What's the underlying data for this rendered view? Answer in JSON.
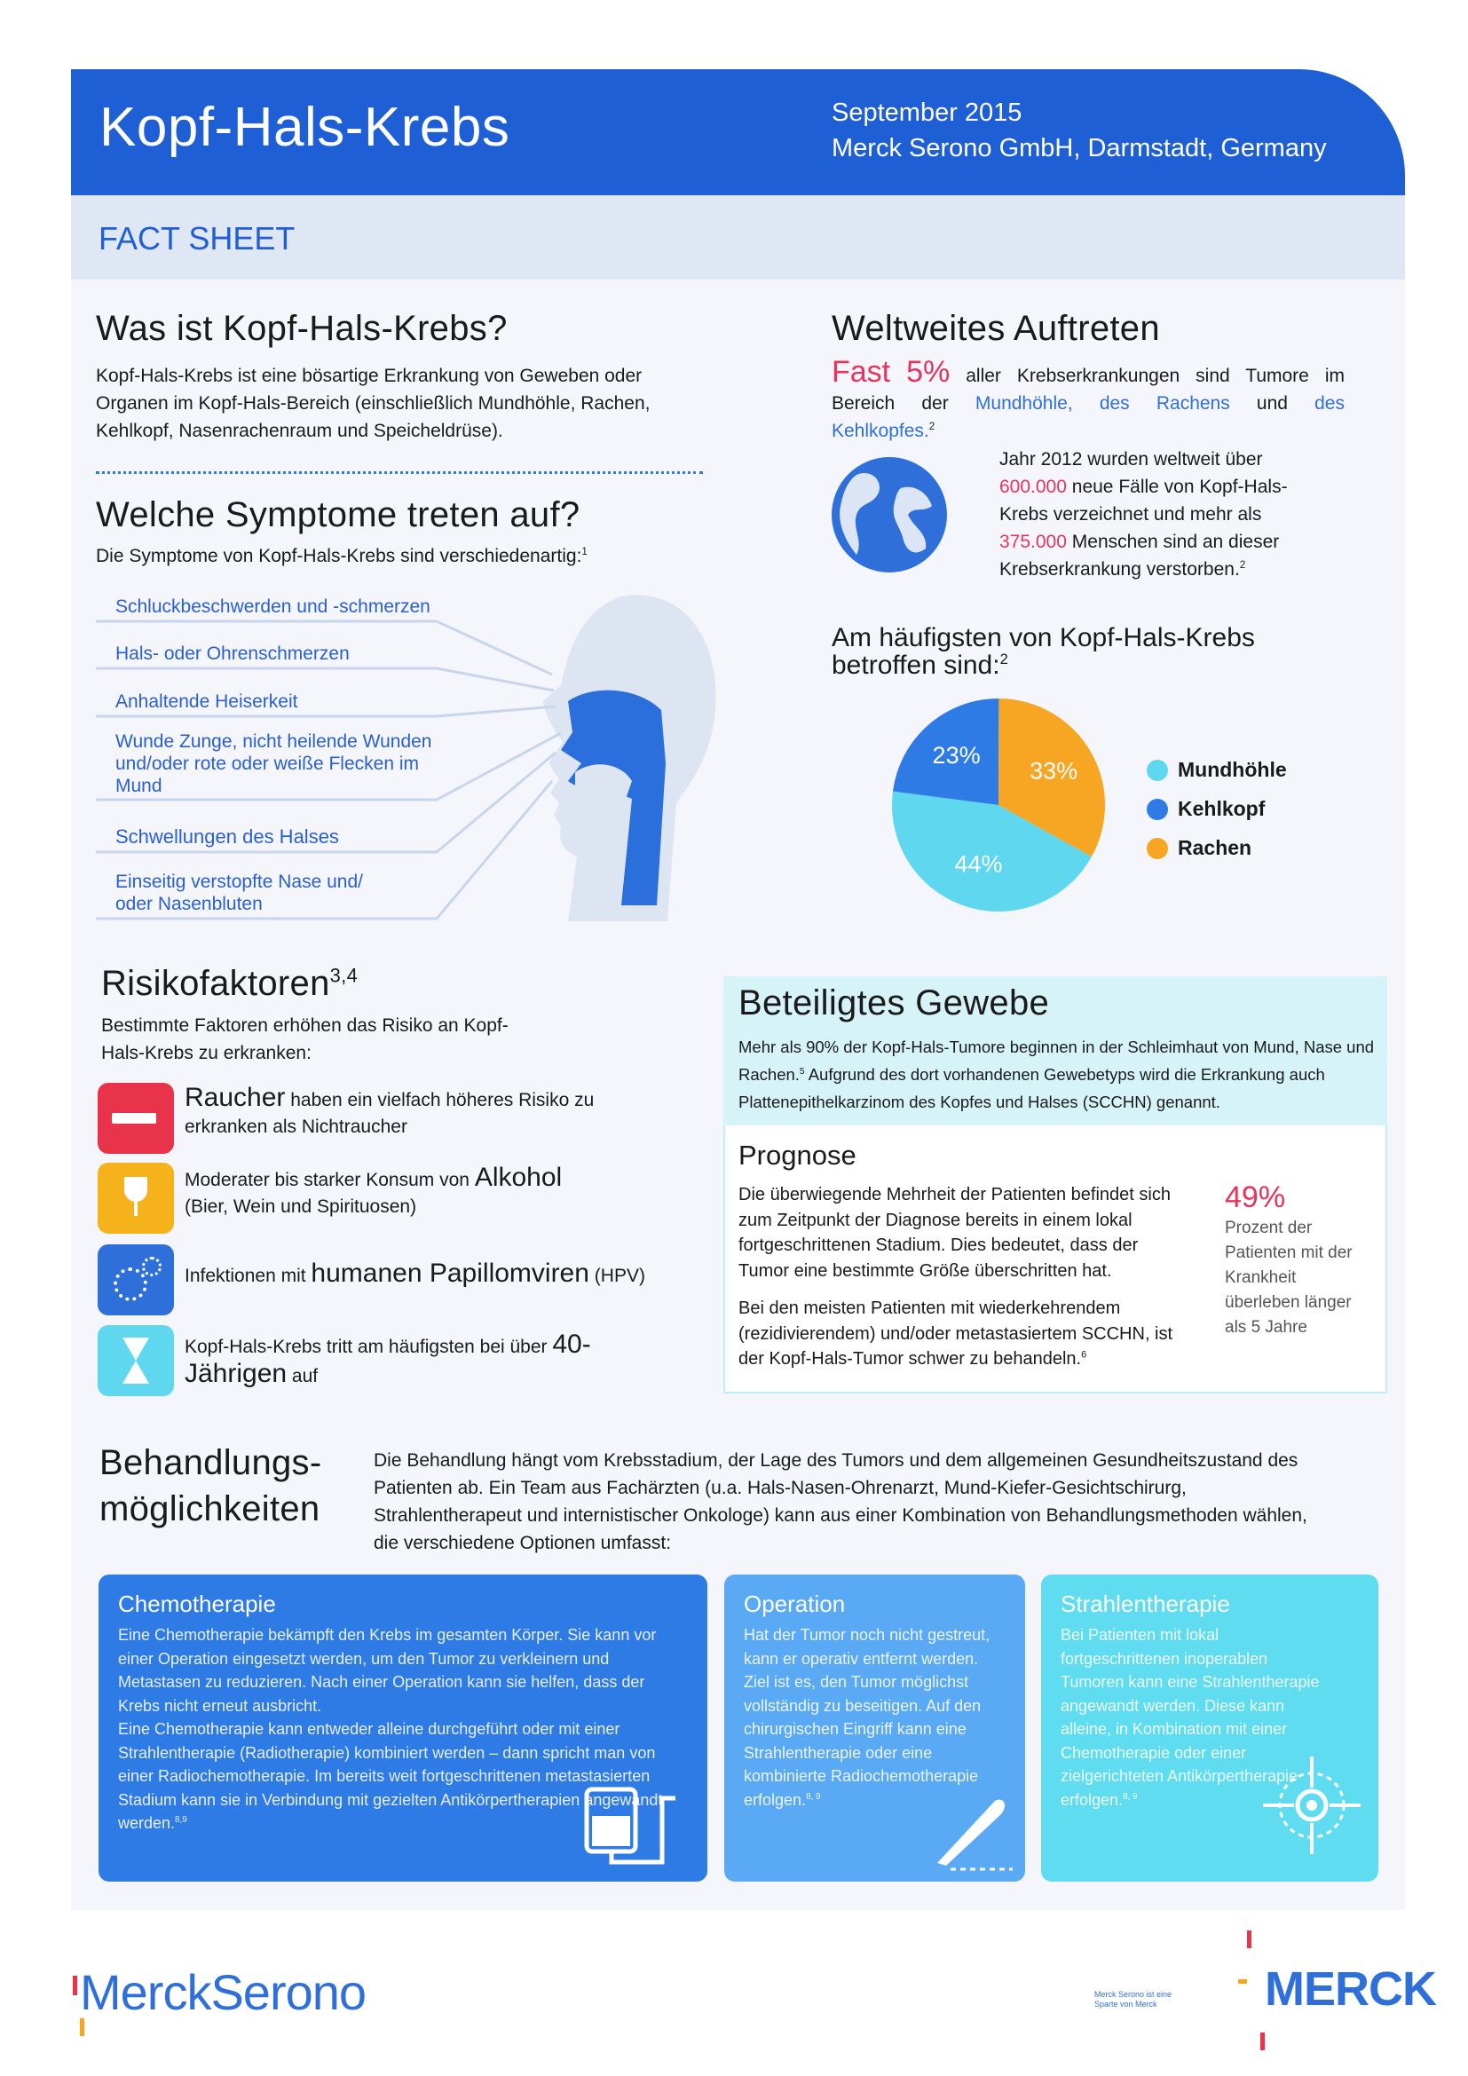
{
  "header": {
    "title": "Kopf-Hals-Krebs",
    "date": "September 2015",
    "company": "Merck Serono GmbH, Darmstadt, Germany",
    "subtitle": "FACT SHEET"
  },
  "what": {
    "title": "Was ist Kopf-Hals-Krebs?",
    "text": "Kopf-Hals-Krebs ist eine bösartige Erkrankung von Geweben oder Organen im Kopf-Hals-Bereich (einschließlich Mundhöhle, Rachen, Kehlkopf, Nasenrachenraum und Speicheldrüse)."
  },
  "symptoms": {
    "title": "Welche Symptome treten auf?",
    "intro": "Die Symptome von Kopf-Hals-Krebs sind verschiedenartig:",
    "intro_ref": "1",
    "items": [
      "Schluckbeschwerden und -schmerzen",
      "Hals- oder Ohrenschmerzen",
      "Anhaltende Heiserkeit",
      "Wunde Zunge, nicht heilende Wunden und/oder rote oder weiße Flecken im Mund",
      "Schwellungen des Halses",
      "Einseitig verstopfte Nase und/ oder Nasenbluten"
    ]
  },
  "worldwide": {
    "title": "Weltweites Auftreten",
    "fast": "Fast",
    "percent": "5%",
    "text1": "aller Krebserkrankungen sind Tumore im Bereich der",
    "link1": "Mundhöhle, des Rachens",
    "text2": "und",
    "link2": "des Kehlkopfes.",
    "ref": "2",
    "stat_text1": "Jahr 2012 wurden weltweit über",
    "stat_cases": "600.000",
    "stat_text2": "neue Fälle von Kopf-Hals-Krebs verzeichnet und mehr als",
    "stat_deaths": "375.000",
    "stat_text3": "Menschen sind an dieser Krebserkrankung verstorben.",
    "stat_ref": "2"
  },
  "pie": {
    "type": "pie",
    "title": "Am häufigsten von Kopf-Hals-Krebs betroffen sind:",
    "ref": "2",
    "categories": [
      "Mundhöhle",
      "Kehlkopf",
      "Rachen"
    ],
    "values": [
      44,
      23,
      33
    ],
    "value_labels": [
      "44%",
      "23%",
      "33%"
    ],
    "colors": [
      "#5fd8ef",
      "#2f7be6",
      "#f6a623"
    ]
  },
  "risk": {
    "title": "Risikofaktoren",
    "ref": "3,4",
    "intro": "Bestimmte Faktoren erhöhen das Risiko an Kopf-Hals-Krebs zu erkranken:",
    "items": [
      {
        "highlight": "Raucher",
        "after": "haben ein vielfach höheres Risiko zu erkranken als Nichtraucher"
      },
      {
        "before": "Moderater bis starker Konsum von",
        "highlight": "Alkohol",
        "after": "(Bier, Wein und Spirituosen)"
      },
      {
        "before": "Infektionen mit",
        "highlight": "humanen Papillomviren",
        "after": "(HPV)"
      },
      {
        "before": "Kopf-Hals-Krebs tritt am häufigsten bei über",
        "highlight": "40-Jährigen",
        "after": "auf"
      }
    ]
  },
  "tissue": {
    "title": "Beteiligtes Gewebe",
    "text1": "Mehr als 90% der Kopf-Hals-Tumore beginnen in der Schleimhaut von Mund, Nase und Rachen.",
    "ref": "5",
    "text2": "Aufgrund des dort vorhandenen Gewebetyps wird die Erkrankung auch Plattenepithelkarzinom des Kopfes und Halses (SCCHN) genannt."
  },
  "prognosis": {
    "title": "Prognose",
    "text1": "Die überwiegende Mehrheit der Patienten befindet sich zum Zeitpunkt der Diagnose bereits in einem lokal fortgeschrittenen Stadium. Dies bedeutet, dass der Tumor eine bestimmte Größe überschritten hat.",
    "text2": "Bei den meisten Patienten mit wiederkehrendem (rezidivierendem) und/oder metastasiertem SCCHN, ist der Kopf-Hals-Tumor schwer zu behandeln.",
    "ref": "6",
    "stat": "49%",
    "stat_text": "Prozent der Patienten mit der Krankheit überleben länger als 5 Jahre"
  },
  "treatment": {
    "title_lines": [
      "Behandlungs-",
      "möglichkeiten"
    ],
    "intro": "Die Behandlung hängt vom Krebsstadium, der Lage des Tumors und dem allgemeinen Gesundheitszustand des Patienten ab. Ein Team aus Fachärzten (u.a. Hals-Nasen-Ohrenarzt, Mund-Kiefer-Gesichtschirurg, Strahlentherapeut und internistischer Onkologe) kann aus einer Kombination von Behandlungsmethoden wählen, die verschiedene Optionen umfasst:",
    "options": [
      {
        "title": "Chemotherapie",
        "paragraphs": [
          "Eine Chemotherapie bekämpft den Krebs im gesamten Körper. Sie kann vor einer Operation eingesetzt werden, um den Tumor zu verkleinern und Metastasen zu reduzieren. Nach einer Operation kann sie helfen, dass der Krebs nicht erneut ausbricht.",
          "Eine Chemotherapie kann entweder alleine durchgeführt oder mit einer Strahlentherapie (Radiotherapie) kombiniert werden – dann spricht man von einer Radiochemotherapie. Im bereits weit fortgeschrittenen metastasierten Stadium kann sie in Verbindung mit gezielten Antikörpertherapien angewandt werden."
        ],
        "ref": "8,9"
      },
      {
        "title": "Operation",
        "paragraphs": [
          "Hat der Tumor noch nicht gestreut, kann er operativ entfernt werden. Ziel ist es, den Tumor möglichst vollständig zu beseitigen. Auf den chirurgischen Eingriff kann eine Strahlentherapie oder eine kombinierte Radiochemotherapie erfolgen."
        ],
        "ref": "8, 9"
      },
      {
        "title": "Strahlentherapie",
        "paragraphs": [
          "Bei Patienten mit lokal fortgeschrittenen inoperablen Tumoren kann eine Strahlentherapie angewandt werden. Diese kann alleine, in Kombination mit einer Chemotherapie oder einer zielgerichteten Antikörpertherapie erfolgen."
        ],
        "ref": "8, 9"
      }
    ]
  },
  "footer": {
    "logo_left": "MerckSerono",
    "note": "Merck Serono ist eine Sparte von Merck",
    "logo_right": "MERCK"
  }
}
